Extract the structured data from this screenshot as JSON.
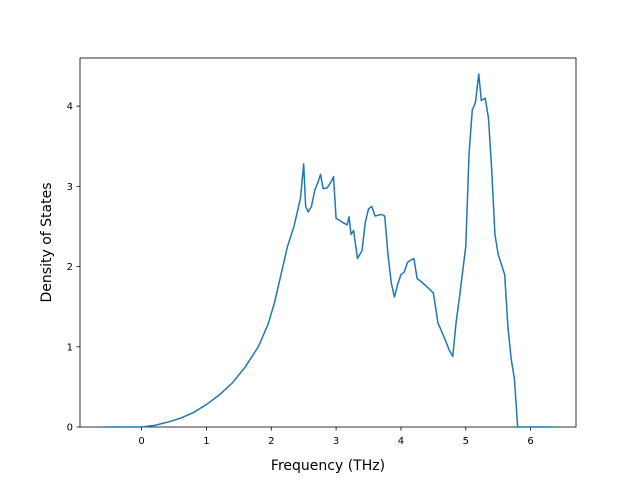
{
  "chart_data": {
    "type": "line",
    "title": "",
    "xlabel": "Frequency (THz)",
    "ylabel": "Density of States",
    "xlim": [
      -0.95,
      6.7
    ],
    "ylim": [
      0,
      4.6
    ],
    "xticks": [
      0,
      1,
      2,
      3,
      4,
      5,
      6
    ],
    "yticks": [
      0,
      1,
      2,
      3,
      4
    ],
    "grid": false,
    "legend": "none",
    "series": [
      {
        "color": "#1f77b4",
        "x": [
          -0.6,
          -0.3,
          0,
          0.2,
          0.4,
          0.6,
          0.8,
          1.0,
          1.2,
          1.4,
          1.6,
          1.8,
          1.95,
          2.05,
          2.15,
          2.25,
          2.35,
          2.45,
          2.5,
          2.53,
          2.57,
          2.62,
          2.67,
          2.72,
          2.76,
          2.8,
          2.86,
          2.92,
          2.96,
          3.0,
          3.05,
          3.1,
          3.17,
          3.2,
          3.23,
          3.27,
          3.33,
          3.4,
          3.45,
          3.5,
          3.55,
          3.6,
          3.7,
          3.75,
          3.8,
          3.85,
          3.9,
          3.95,
          4.0,
          4.05,
          4.1,
          4.15,
          4.2,
          4.25,
          4.3,
          4.4,
          4.5,
          4.57,
          4.65,
          4.75,
          4.8,
          4.85,
          4.9,
          5.0,
          5.05,
          5.1,
          5.15,
          5.2,
          5.24,
          5.3,
          5.35,
          5.4,
          5.45,
          5.5,
          5.6,
          5.65,
          5.7,
          5.75,
          5.78,
          5.8,
          6.0,
          6.2,
          6.35
        ],
        "y": [
          0,
          0,
          0,
          0.02,
          0.06,
          0.11,
          0.18,
          0.28,
          0.4,
          0.55,
          0.75,
          1.0,
          1.28,
          1.55,
          1.9,
          2.25,
          2.5,
          2.85,
          3.28,
          2.75,
          2.68,
          2.75,
          2.95,
          3.05,
          3.15,
          2.97,
          2.98,
          3.05,
          3.12,
          2.6,
          2.58,
          2.55,
          2.52,
          2.62,
          2.4,
          2.45,
          2.1,
          2.2,
          2.55,
          2.72,
          2.75,
          2.63,
          2.65,
          2.63,
          2.15,
          1.8,
          1.62,
          1.78,
          1.9,
          1.93,
          2.05,
          2.08,
          2.1,
          1.85,
          1.82,
          1.75,
          1.67,
          1.3,
          1.15,
          0.95,
          0.88,
          1.3,
          1.6,
          2.25,
          3.4,
          3.95,
          4.05,
          4.4,
          4.07,
          4.1,
          3.85,
          3.2,
          2.4,
          2.15,
          1.9,
          1.25,
          0.85,
          0.6,
          0.25,
          0,
          0,
          0,
          0
        ]
      }
    ]
  }
}
